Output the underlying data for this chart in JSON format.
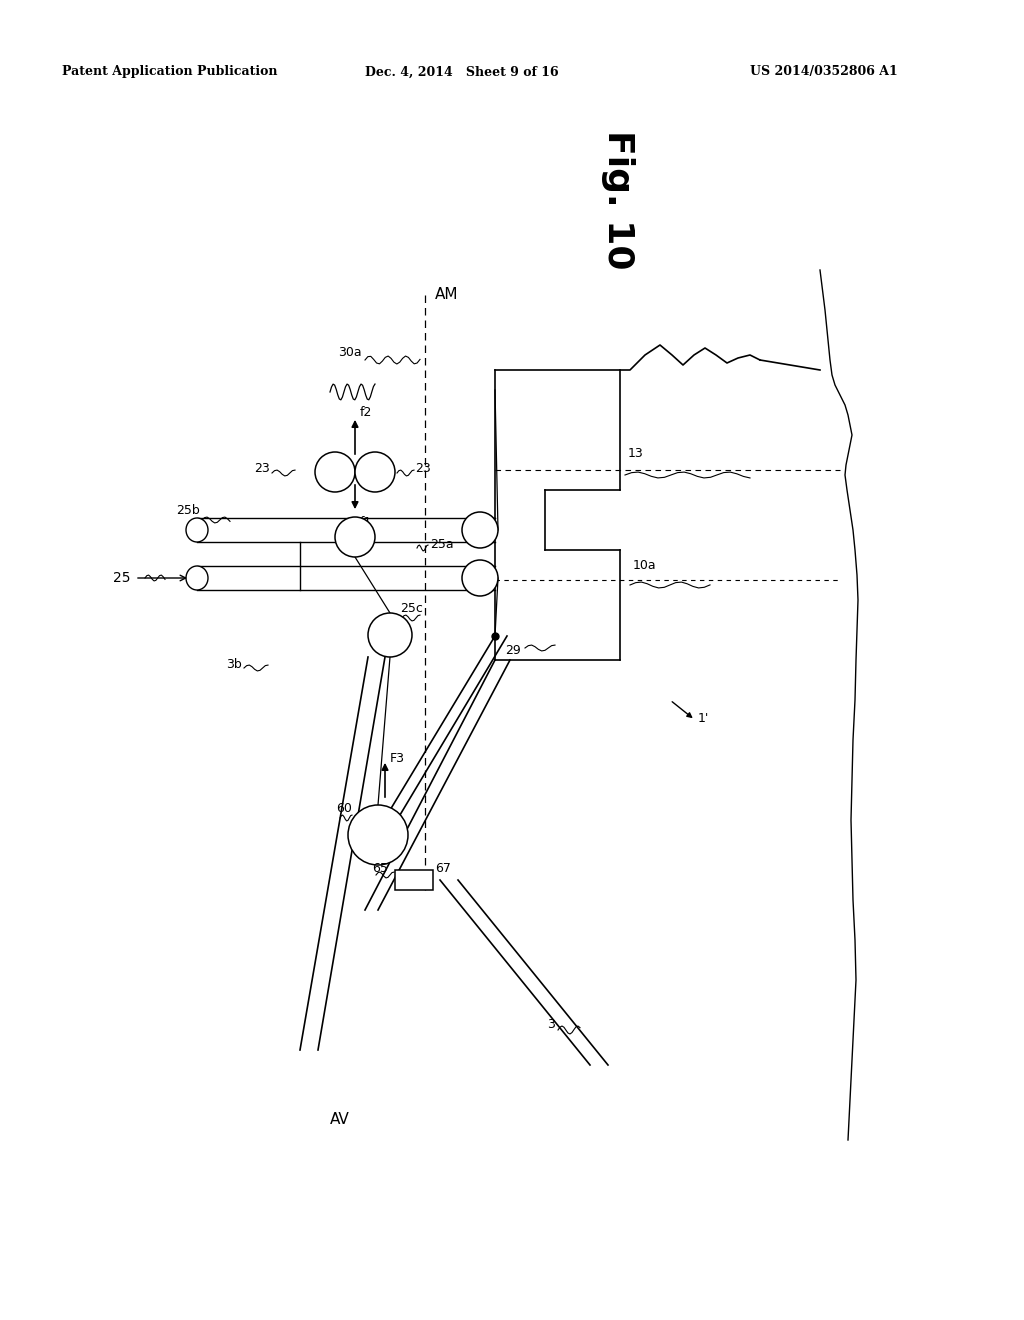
{
  "bg_color": "#ffffff",
  "header_left": "Patent Application Publication",
  "header_mid": "Dec. 4, 2014   Sheet 9 of 16",
  "header_right": "US 2014/0352806 A1",
  "fig_label": "Fig. 10"
}
